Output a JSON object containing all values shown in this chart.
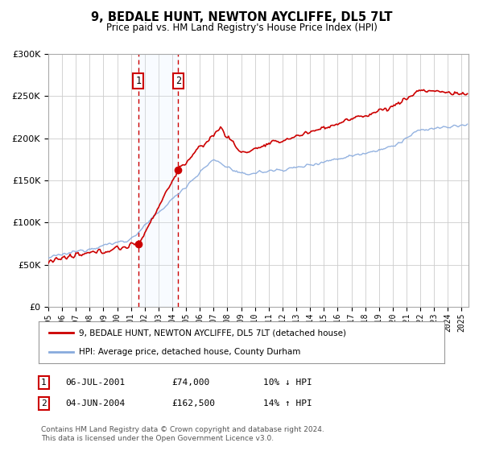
{
  "title1": "9, BEDALE HUNT, NEWTON AYCLIFFE, DL5 7LT",
  "title2": "Price paid vs. HM Land Registry's House Price Index (HPI)",
  "legend1": "9, BEDALE HUNT, NEWTON AYCLIFFE, DL5 7LT (detached house)",
  "legend2": "HPI: Average price, detached house, County Durham",
  "transaction1_date": "06-JUL-2001",
  "transaction1_price": "£74,000",
  "transaction1_hpi": "10% ↓ HPI",
  "transaction2_date": "04-JUN-2004",
  "transaction2_price": "£162,500",
  "transaction2_hpi": "14% ↑ HPI",
  "footnote": "Contains HM Land Registry data © Crown copyright and database right 2024.\nThis data is licensed under the Open Government Licence v3.0.",
  "ylim": [
    0,
    300000
  ],
  "yticks": [
    0,
    50000,
    100000,
    150000,
    200000,
    250000,
    300000
  ],
  "background_color": "#ffffff",
  "grid_color": "#cccccc",
  "red_color": "#cc0000",
  "blue_color": "#88aadd",
  "shade_color": "#ddeeff",
  "marker1_x": 2001.54,
  "marker1_y": 74000,
  "marker2_x": 2004.42,
  "marker2_y": 162500,
  "xmin": 1995,
  "xmax": 2025.5
}
